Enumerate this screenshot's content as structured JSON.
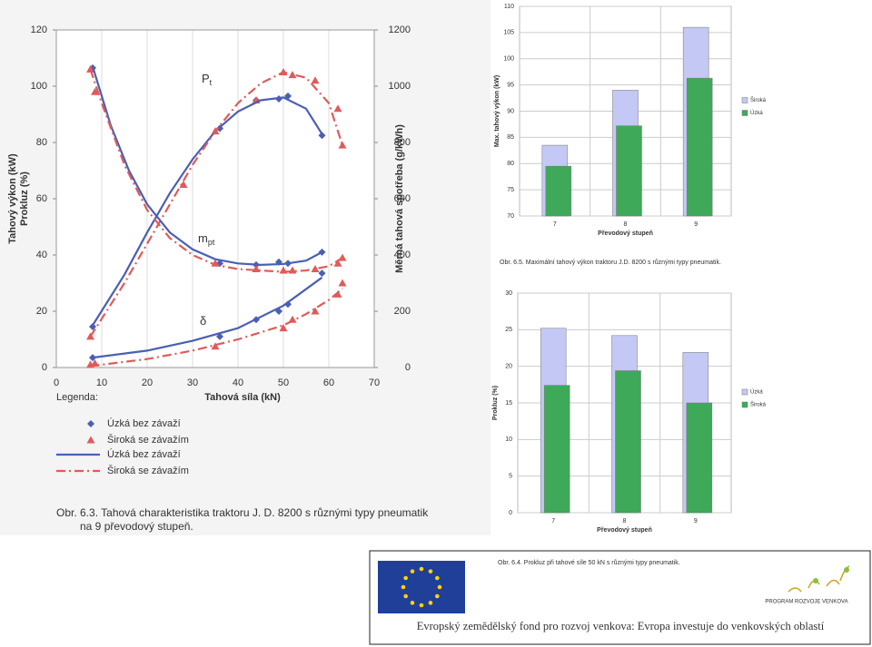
{
  "chart_data": [
    {
      "type": "line",
      "xlim": [
        0,
        70
      ],
      "xticks": [
        0,
        10,
        20,
        30,
        40,
        50,
        60,
        70
      ],
      "ylim": [
        0,
        120
      ],
      "yticks": [
        0,
        20,
        40,
        60,
        80,
        100,
        120
      ],
      "y2lim": [
        0,
        1200
      ],
      "y2ticks": [
        0,
        200,
        400,
        600,
        800,
        1000,
        1200
      ],
      "x_label": "Tahová síla  (kN)",
      "y_label": [
        "Tahový výkon  (kW)",
        "Prokluz (%)"
      ],
      "y2_label": "Měrná tahová spotřeba  (g/kWh)",
      "grid": true,
      "annotations": [
        {
          "text": "P",
          "sub": "t"
        },
        {
          "text": "m",
          "sub": "pt"
        },
        {
          "text": "δ",
          "sub": ""
        }
      ],
      "legend_title": "Legenda:",
      "legend": [
        {
          "label": "Úzká bez závaží",
          "style": "diamond",
          "color": "#4a5fb4"
        },
        {
          "label": "Široká se závažím",
          "style": "triangle",
          "color": "#e05a5a"
        },
        {
          "label": "Úzká bez závaží",
          "style": "solid",
          "color": "#4a5fb4"
        },
        {
          "label": "Široká se závažím",
          "style": "dashdot",
          "color": "#e05a5a"
        }
      ],
      "series": [
        {
          "style": "diamond",
          "color": "#4a5fb4",
          "axis": "y",
          "x": [
            8,
            36,
            44,
            49,
            51,
            58.5
          ],
          "values": [
            14.5,
            85,
            95,
            95.5,
            96.5,
            82.5
          ]
        },
        {
          "style": "triangle",
          "color": "#e05a5a",
          "axis": "y",
          "x": [
            7.5,
            28,
            35,
            44,
            50,
            52,
            57,
            62,
            63
          ],
          "values": [
            11,
            65,
            84,
            95,
            105,
            104,
            102,
            92,
            79
          ]
        },
        {
          "style": "solid",
          "color": "#4a5fb4",
          "axis": "y",
          "x": [
            8,
            15,
            20,
            25,
            30,
            35,
            40,
            45,
            50,
            55,
            58.5
          ],
          "values": [
            15,
            33,
            48,
            62,
            74,
            84,
            91,
            95,
            96,
            92,
            83
          ]
        },
        {
          "style": "dashdot",
          "color": "#e05a5a",
          "axis": "y",
          "x": [
            7.5,
            15,
            20,
            25,
            30,
            35,
            40,
            45,
            50,
            55,
            60,
            63
          ],
          "values": [
            11,
            30,
            44,
            58,
            72,
            84,
            94,
            101,
            105,
            103,
            94,
            79
          ]
        },
        {
          "style": "diamond",
          "color": "#4a5fb4",
          "axis": "y2",
          "x": [
            8,
            36,
            44,
            49,
            51,
            58.5
          ],
          "values": [
            1065,
            370,
            365,
            375,
            370,
            410
          ]
        },
        {
          "style": "triangle",
          "color": "#e05a5a",
          "axis": "y2",
          "x": [
            7.5,
            8.5,
            35,
            44,
            50,
            52,
            57,
            62,
            63
          ],
          "values": [
            1060,
            980,
            370,
            350,
            345,
            345,
            350,
            370,
            390
          ]
        },
        {
          "style": "solid",
          "color": "#4a5fb4",
          "axis": "y2",
          "x": [
            8,
            12,
            16,
            20,
            25,
            30,
            35,
            40,
            45,
            50,
            55,
            58.5
          ],
          "values": [
            1070,
            860,
            700,
            580,
            480,
            420,
            385,
            370,
            365,
            368,
            380,
            410
          ]
        },
        {
          "style": "dashdot",
          "color": "#e05a5a",
          "axis": "y2",
          "x": [
            7.5,
            10,
            15,
            20,
            25,
            30,
            35,
            40,
            45,
            50,
            55,
            60,
            63
          ],
          "values": [
            1060,
            940,
            720,
            560,
            460,
            400,
            365,
            350,
            345,
            340,
            345,
            360,
            390
          ]
        },
        {
          "style": "diamond",
          "color": "#4a5fb4",
          "axis": "y",
          "x": [
            8,
            36,
            44,
            49,
            51,
            58.5
          ],
          "values": [
            3.5,
            11,
            17,
            20,
            22.5,
            33.5
          ]
        },
        {
          "style": "triangle",
          "color": "#e05a5a",
          "axis": "y",
          "x": [
            7.5,
            8.5,
            35,
            50,
            52,
            57,
            62,
            63
          ],
          "values": [
            1,
            1.5,
            7.5,
            14,
            17,
            20,
            26,
            30
          ]
        },
        {
          "style": "solid",
          "color": "#4a5fb4",
          "axis": "y",
          "x": [
            8,
            20,
            30,
            40,
            50,
            58.5
          ],
          "values": [
            3.5,
            6,
            9.5,
            14,
            22,
            32
          ]
        },
        {
          "style": "dashdot",
          "color": "#e05a5a",
          "axis": "y",
          "x": [
            7.5,
            20,
            30,
            40,
            50,
            55,
            60,
            63
          ],
          "values": [
            0.5,
            3,
            6,
            10,
            15,
            19,
            24,
            28
          ]
        }
      ],
      "caption": [
        "Obr. 6.3. Tahová charakteristika traktoru J. D. 8200 s různými typy pneumatik",
        "na 9  převodový stupeň."
      ]
    },
    {
      "type": "bar",
      "categories": [
        "7",
        "8",
        "9"
      ],
      "ylim": [
        70,
        110
      ],
      "yticks": [
        70,
        75,
        80,
        85,
        90,
        95,
        100,
        105,
        110
      ],
      "x_label": "Převodový stupeň",
      "y_label": "Max. tahový výkon (kW)",
      "grid": true,
      "series": [
        {
          "name": "Široká",
          "color": "#c4c8f4",
          "values": [
            83.5,
            94,
            106
          ]
        },
        {
          "name": "Úzká",
          "color": "#3fa95a",
          "values": [
            79.5,
            87.2,
            96.3
          ]
        }
      ],
      "caption": "Obr. 6.5. Maximální tahový výkon traktoru J.D. 8200 s různými typy pneumatik."
    },
    {
      "type": "bar",
      "categories": [
        "7",
        "8",
        "9"
      ],
      "ylim": [
        0,
        30
      ],
      "yticks": [
        0,
        5,
        10,
        15,
        20,
        25,
        30
      ],
      "x_label": "Převodový stupeň",
      "y_label": "Prokluz  (%)",
      "grid": true,
      "series": [
        {
          "name": "Úzká",
          "color": "#c4c8f4",
          "values": [
            25.2,
            24.2,
            21.9
          ]
        },
        {
          "name": "Široká",
          "color": "#3fa95a",
          "values": [
            17.4,
            19.4,
            15
          ]
        }
      ],
      "caption": "Obr. 6.4. Prokluz při tahové síle  50 kN s různými typy pneumatik."
    }
  ],
  "footer": {
    "logo_text": "PROGRAM ROZVOJE VENKOVA",
    "text": "Evropský zemědělský fond pro rozvoj venkova: Evropa investuje do venkovských oblastí"
  }
}
